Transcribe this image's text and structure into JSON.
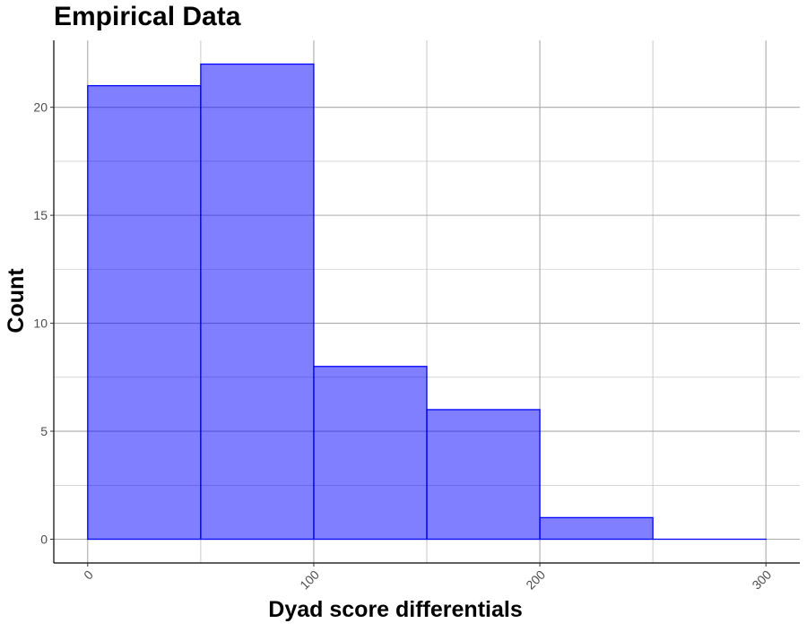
{
  "chart_data": {
    "type": "bar",
    "subtype": "histogram",
    "title": "Empirical Data",
    "xlabel": "Dyad score differentials",
    "ylabel": "Count",
    "bins": [
      {
        "x0": 0,
        "x1": 50,
        "count": 21
      },
      {
        "x0": 50,
        "x1": 100,
        "count": 22
      },
      {
        "x0": 100,
        "x1": 150,
        "count": 8
      },
      {
        "x0": 150,
        "x1": 200,
        "count": 6
      },
      {
        "x0": 200,
        "x1": 250,
        "count": 1
      },
      {
        "x0": 250,
        "x1": 300,
        "count": 0
      }
    ],
    "xlim": [
      -15,
      315
    ],
    "ylim": [
      -1.1,
      23.1
    ],
    "xticks": [
      0,
      100,
      200,
      300
    ],
    "yticks": [
      0,
      5,
      10,
      15,
      20
    ],
    "grid": true,
    "legend": "none",
    "colors": {
      "bar_fill": "#0000ff",
      "bar_fill_opacity": 0.5,
      "bar_outline": "#0000ff",
      "grid": "#bdbdbd",
      "axis": "#000000",
      "tick_label": "#4d4d4d"
    }
  }
}
